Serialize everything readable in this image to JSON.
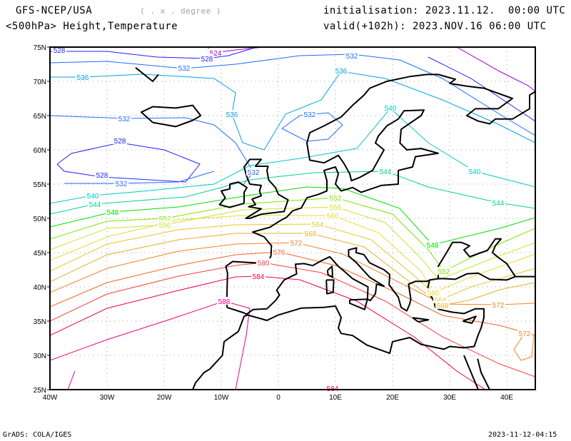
{
  "header": {
    "model": "GFS-NCEP/USA",
    "resolution": "( . x . degree )",
    "product": "<500hPa> Height,Temperature",
    "init": "initialisation: 2023.11.12.  00:00 UTC",
    "valid": "valid(+102h): 2023.NOV.16 06:00 UTC"
  },
  "footer": {
    "left": "GrADS: COLA/IGES",
    "right": "2023-11-12-04:15"
  },
  "map": {
    "lon_ticks": [
      "40W",
      "30W",
      "20W",
      "10W",
      "0",
      "10E",
      "20E",
      "30E",
      "40E"
    ],
    "lat_ticks": [
      "75N",
      "70N",
      "65N",
      "60N",
      "55N",
      "50N",
      "45N",
      "40N",
      "35N",
      "30N",
      "25N"
    ],
    "lon_range": [
      -40,
      45
    ],
    "lat_range": [
      25,
      75
    ],
    "coast_color": "#000000",
    "grid_color": "#a0a0a0"
  },
  "contours": [
    {
      "level": "524",
      "color": "#a000c8"
    },
    {
      "level": "528",
      "color": "#2020ff"
    },
    {
      "level": "532",
      "color": "#1e6eff"
    },
    {
      "level": "536",
      "color": "#00a0e6"
    },
    {
      "level": "540",
      "color": "#00c8c8"
    },
    {
      "level": "544",
      "color": "#00d28c"
    },
    {
      "level": "548",
      "color": "#00dc00"
    },
    {
      "level": "552",
      "color": "#7ae600"
    },
    {
      "level": "556",
      "color": "#c8e632"
    },
    {
      "level": "560",
      "color": "#e6dc32"
    },
    {
      "level": "564",
      "color": "#e6c828"
    },
    {
      "level": "568",
      "color": "#e6af2d"
    },
    {
      "level": "572",
      "color": "#f08228"
    },
    {
      "level": "576",
      "color": "#f06428"
    },
    {
      "level": "580",
      "color": "#fa3c3c"
    },
    {
      "level": "584",
      "color": "#f0004b"
    },
    {
      "level": "588",
      "color": "#f00082"
    }
  ]
}
